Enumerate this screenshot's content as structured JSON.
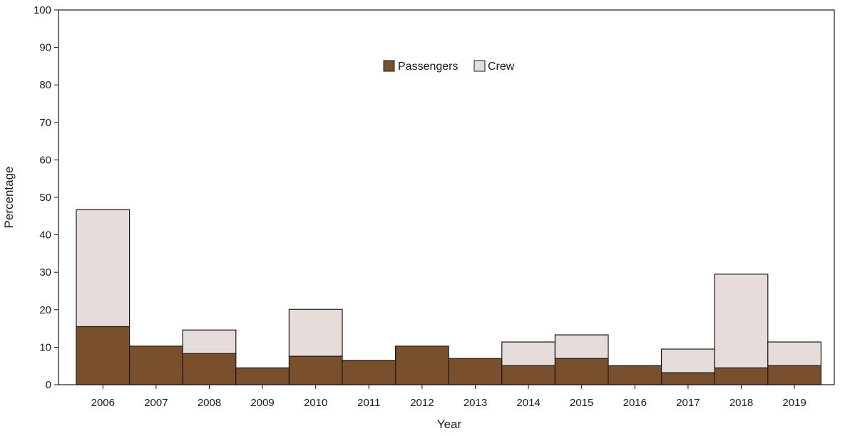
{
  "chart_data": {
    "type": "bar",
    "stacked": true,
    "categories": [
      "2006",
      "2007",
      "2008",
      "2009",
      "2010",
      "2011",
      "2012",
      "2013",
      "2014",
      "2015",
      "2016",
      "2017",
      "2018",
      "2019"
    ],
    "series": [
      {
        "name": "Passengers",
        "color": "#7a4f2c",
        "values": [
          15.5,
          10.3,
          8.3,
          4.5,
          7.6,
          6.5,
          10.3,
          7.0,
          5.1,
          7.0,
          5.1,
          3.2,
          4.5,
          5.1
        ]
      },
      {
        "name": "Crew",
        "color": "#e6dcd9",
        "values": [
          31.2,
          0,
          6.3,
          0,
          12.5,
          0,
          0,
          0,
          6.3,
          6.3,
          0,
          6.3,
          25.0,
          6.3
        ]
      }
    ],
    "xlabel": "Year",
    "ylabel": "Percentage",
    "ylim": [
      0,
      100
    ],
    "yticks": [
      0,
      10,
      20,
      30,
      40,
      50,
      60,
      70,
      80,
      90,
      100
    ],
    "grid": false,
    "legend": "top-center"
  }
}
